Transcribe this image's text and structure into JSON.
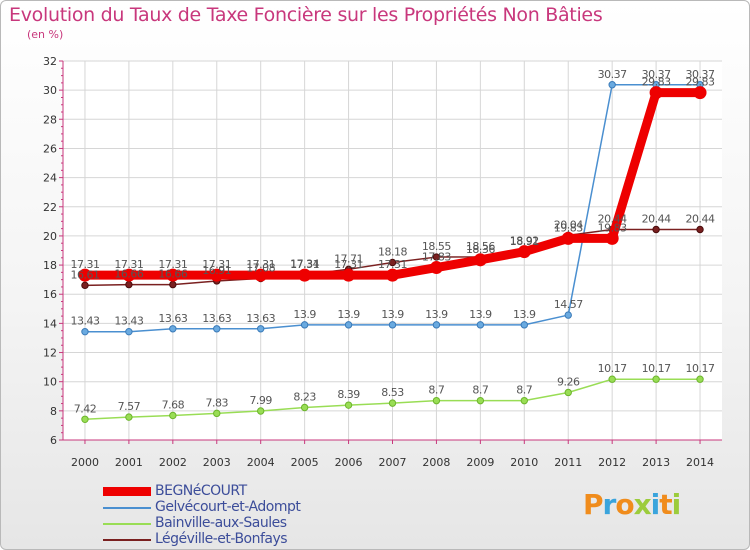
{
  "chart_data": {
    "type": "line",
    "title": "Evolution du Taux de Taxe Foncière sur les Propriétés Non Bâties",
    "unit_label": "(en %)",
    "categories": [
      "2000",
      "2001",
      "2002",
      "2003",
      "2004",
      "2005",
      "2006",
      "2007",
      "2008",
      "2009",
      "2010",
      "2011",
      "2012",
      "2013",
      "2014"
    ],
    "ylim": [
      6,
      32
    ],
    "yticks": [
      6,
      8,
      10,
      12,
      14,
      16,
      18,
      20,
      22,
      24,
      26,
      28,
      30,
      32
    ],
    "grid": true,
    "series": [
      {
        "name": "BEGNéCOURT",
        "color": "#ee0000",
        "values": [
          17.31,
          17.31,
          17.31,
          17.31,
          17.31,
          17.31,
          17.31,
          17.31,
          17.83,
          18.36,
          18.92,
          19.83,
          19.83,
          29.83,
          29.83
        ],
        "labels": [
          "17.31",
          "17.31",
          "17.31",
          "17.31",
          "17.31",
          "17.31",
          "17.31",
          "17.31",
          "17.83",
          "18.36",
          "18.92",
          "19.83",
          "19.83",
          "29.83",
          "29.83"
        ]
      },
      {
        "name": "Gelvécourt-et-Adompt",
        "color": "#4a8fd0",
        "values": [
          13.43,
          13.43,
          13.63,
          13.63,
          13.63,
          13.9,
          13.9,
          13.9,
          13.9,
          13.9,
          13.9,
          14.57,
          30.37,
          30.37,
          30.37
        ],
        "labels": [
          "13.43",
          "13.43",
          "13.63",
          "13.63",
          "13.63",
          "13.9",
          "13.9",
          "13.9",
          "13.9",
          "13.9",
          "13.9",
          "14.57",
          "30.37",
          "30.37",
          "30.37"
        ]
      },
      {
        "name": "Bainville-aux-Saules",
        "color": "#99dd55",
        "values": [
          7.42,
          7.57,
          7.68,
          7.83,
          7.99,
          8.23,
          8.39,
          8.53,
          8.7,
          8.7,
          8.7,
          9.26,
          10.17,
          10.17,
          10.17
        ],
        "labels": [
          "7.42",
          "7.57",
          "7.68",
          "7.83",
          "7.99",
          "8.23",
          "8.39",
          "8.53",
          "8.7",
          "8.7",
          "8.7",
          "9.26",
          "10.17",
          "10.17",
          "10.17"
        ]
      },
      {
        "name": "Légéville-et-Bonfays",
        "color": "#7a2020",
        "values": [
          16.61,
          16.66,
          16.66,
          16.91,
          17.08,
          17.34,
          17.71,
          18.18,
          18.55,
          18.56,
          18.91,
          20.04,
          20.44,
          20.44,
          20.44
        ],
        "labels": [
          "16.61",
          "16.66",
          "16.66",
          "16.91",
          "17.08",
          "17.34",
          "17.71",
          "18.18",
          "18.55",
          "18.56",
          "18.91",
          "20.04",
          "20.44",
          "20.44",
          "20.44"
        ]
      }
    ]
  },
  "legend": {
    "items": [
      {
        "label": "BEGNéCOURT",
        "color": "#ee0000"
      },
      {
        "label": "Gelvécourt-et-Adompt",
        "color": "#4a8fd0"
      },
      {
        "label": "Bainville-aux-Saules",
        "color": "#99dd55"
      },
      {
        "label": "Légéville-et-Bonfays",
        "color": "#7a2020"
      }
    ]
  },
  "logo": {
    "text": "Proxiti",
    "colors": [
      "#f08c1c",
      "#3aa4dc",
      "#f08c1c",
      "#9ccc3c",
      "#3aa4dc",
      "#f08c1c",
      "#9ccc3c"
    ]
  }
}
